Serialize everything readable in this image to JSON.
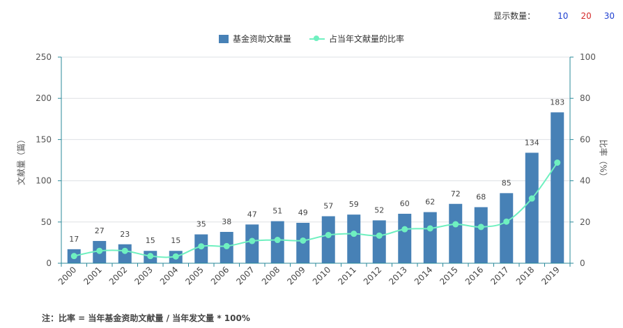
{
  "controls": {
    "label": "显示数量：",
    "options": [
      "10",
      "20",
      "30"
    ],
    "option_colors": [
      "#1e3fd0",
      "#d42a2a",
      "#1e3fd0"
    ]
  },
  "legend": {
    "bar_label": "基金资助文献量",
    "line_label": "占当年文献量的比率"
  },
  "colors": {
    "bar": "#4781b6",
    "line": "#6ff0c0",
    "axis": "#2a8a9a",
    "grid": "#dde0e4"
  },
  "footnote": "注：比率 = 当年基金资助文献量 / 当年发文量 * 100%",
  "chart_data": {
    "type": "bar",
    "categories": [
      "2000",
      "2001",
      "2002",
      "2003",
      "2004",
      "2005",
      "2006",
      "2007",
      "2008",
      "2009",
      "2010",
      "2011",
      "2012",
      "2013",
      "2014",
      "2015",
      "2016",
      "2017",
      "2018",
      "2019"
    ],
    "series": [
      {
        "name": "基金资助文献量",
        "type": "bar",
        "axis": "left",
        "values": [
          17,
          27,
          23,
          15,
          15,
          35,
          38,
          47,
          51,
          49,
          57,
          59,
          52,
          60,
          62,
          72,
          68,
          85,
          134,
          183
        ],
        "data_labels": true
      },
      {
        "name": "占当年文献量的比率",
        "type": "line",
        "axis": "right",
        "values": [
          3.5,
          6,
          6,
          3.5,
          3.3,
          8.2,
          8.3,
          10.8,
          11.3,
          11,
          13.7,
          14.3,
          13.4,
          16.5,
          16.9,
          18.9,
          17.6,
          20.2,
          31.4,
          48.8
        ]
      }
    ],
    "ylabel": "文献量（篇）",
    "y2label": "比率（%）",
    "ylim": [
      0,
      250
    ],
    "y2lim": [
      0,
      100
    ],
    "yticks": [
      "0",
      "50",
      "100",
      "150",
      "200",
      "250"
    ],
    "y2ticks": [
      "0",
      "20",
      "40",
      "60",
      "80",
      "100"
    ],
    "grid": true,
    "legend_position": "top-center"
  }
}
